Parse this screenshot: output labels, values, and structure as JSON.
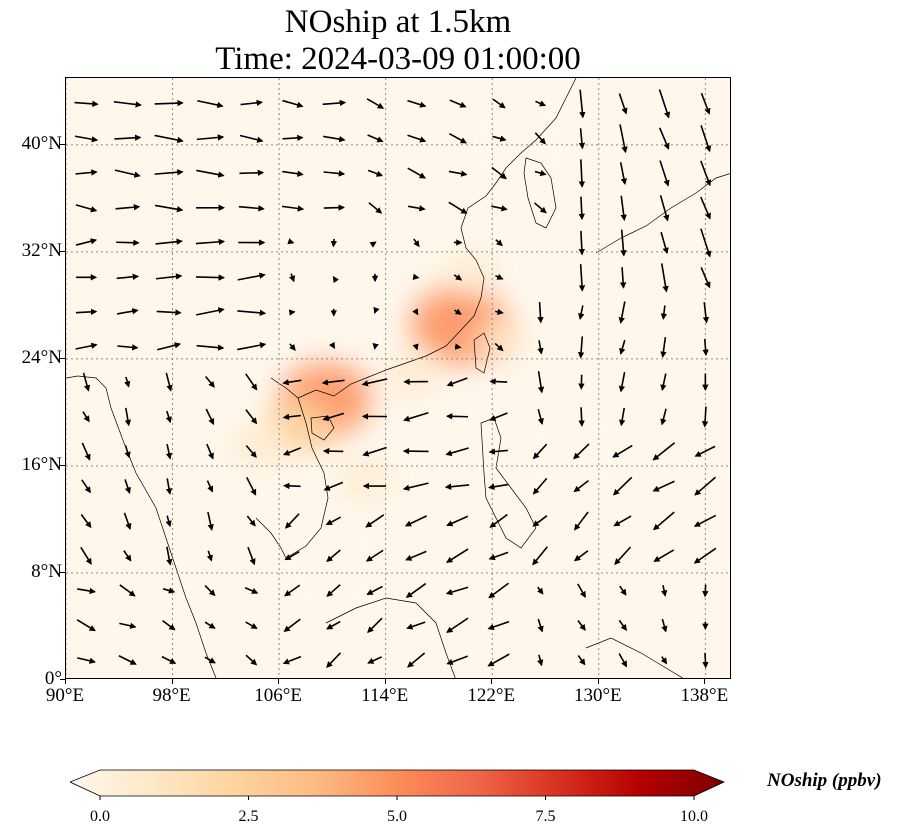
{
  "title": {
    "line1": "NOship at 1.5km",
    "line2": "Time: 2024-03-09 01:00:00"
  },
  "map": {
    "extent": {
      "lon": [
        90,
        140
      ],
      "lat": [
        0,
        45
      ]
    },
    "grid": true,
    "x_ticks": [
      {
        "lon": 90,
        "label": "90°E"
      },
      {
        "lon": 98,
        "label": "98°E"
      },
      {
        "lon": 106,
        "label": "106°E"
      },
      {
        "lon": 114,
        "label": "114°E"
      },
      {
        "lon": 122,
        "label": "122°E"
      },
      {
        "lon": 130,
        "label": "130°E"
      },
      {
        "lon": 138,
        "label": "138°E"
      }
    ],
    "y_ticks": [
      {
        "lat": 0,
        "label": "0°"
      },
      {
        "lat": 8,
        "label": "8°N"
      },
      {
        "lat": 16,
        "label": "16°N"
      },
      {
        "lat": 24,
        "label": "24°N"
      },
      {
        "lat": 32,
        "label": "32°N"
      },
      {
        "lat": 40,
        "label": "40°N"
      }
    ],
    "plumes": [
      {
        "lon": 109.5,
        "lat": 21.0,
        "value": 4.5
      },
      {
        "lon": 107.5,
        "lat": 19.0,
        "value": 2.5
      },
      {
        "lon": 119.5,
        "lat": 26.5,
        "value": 5.0
      },
      {
        "lon": 122.5,
        "lat": 25.5,
        "value": 1.2
      },
      {
        "lon": 116.0,
        "lat": 23.0,
        "value": 1.2
      },
      {
        "lon": 112.5,
        "lat": 15.0,
        "value": 1.0
      },
      {
        "lon": 104.5,
        "lat": 17.5,
        "value": 1.0
      },
      {
        "lon": 120.5,
        "lat": 30.5,
        "value": 0.8
      },
      {
        "lon": 124.0,
        "lat": 40.0,
        "value": 0.6
      },
      {
        "lon": 110.0,
        "lat": 8.5,
        "value": 0.5
      },
      {
        "lon": 128.0,
        "lat": 17.0,
        "value": 0.4
      }
    ],
    "wind_regions": [
      {
        "lon": [
          90,
          112
        ],
        "lat": [
          35,
          45
        ],
        "u": 7,
        "v": -0.5
      },
      {
        "lon": [
          112,
          126
        ],
        "lat": [
          35,
          45
        ],
        "u": 4,
        "v": -2
      },
      {
        "lon": [
          126,
          140
        ],
        "lat": [
          30,
          45
        ],
        "u": 1.5,
        "v": -7
      },
      {
        "lon": [
          90,
          106
        ],
        "lat": [
          24,
          35
        ],
        "u": 7,
        "v": 0.5
      },
      {
        "lon": [
          106,
          124
        ],
        "lat": [
          24,
          35
        ],
        "u": 1,
        "v": -1
      },
      {
        "lon": [
          124,
          140
        ],
        "lat": [
          18,
          30
        ],
        "u": 0,
        "v": -5
      },
      {
        "lon": [
          90,
          104
        ],
        "lat": [
          8,
          24
        ],
        "u": 2,
        "v": -4
      },
      {
        "lon": [
          104,
          124
        ],
        "lat": [
          14,
          24
        ],
        "u": -6,
        "v": -1
      },
      {
        "lon": [
          124,
          140
        ],
        "lat": [
          8,
          18
        ],
        "u": -5,
        "v": -4
      },
      {
        "lon": [
          104,
          124
        ],
        "lat": [
          0,
          14
        ],
        "u": -5,
        "v": -3
      },
      {
        "lon": [
          90,
          104
        ],
        "lat": [
          0,
          8
        ],
        "u": 4,
        "v": -2
      },
      {
        "lon": [
          124,
          140
        ],
        "lat": [
          0,
          8
        ],
        "u": 1,
        "v": -3
      }
    ]
  },
  "colorbar": {
    "title": "NOship (ppbv)",
    "min": 0.0,
    "max": 10.0,
    "ticks": [
      {
        "value": 0.0,
        "label": "0.0"
      },
      {
        "value": 2.5,
        "label": "2.5"
      },
      {
        "value": 5.0,
        "label": "5.0"
      },
      {
        "value": 7.5,
        "label": "7.5"
      },
      {
        "value": 10.0,
        "label": "10.0"
      }
    ],
    "colors": [
      "#fff7ec",
      "#fee8c8",
      "#fdd49e",
      "#fdbb84",
      "#fc8d59",
      "#ef6548",
      "#d7301f",
      "#b30000",
      "#7f0000"
    ]
  }
}
